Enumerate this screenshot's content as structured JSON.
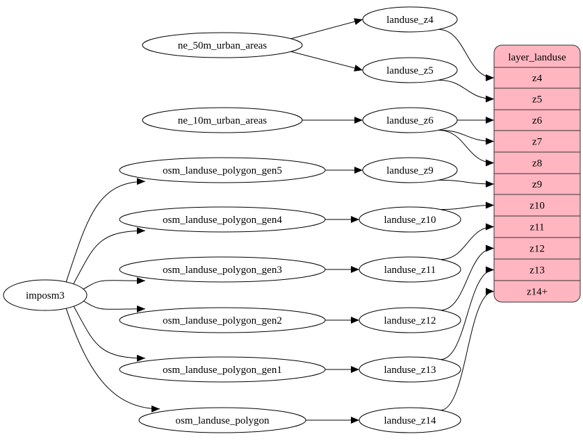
{
  "colors": {
    "record_fill": "#ffb6c1",
    "stroke": "#000000"
  },
  "nodes": [
    {
      "id": "landuse_z4",
      "label": "landuse_z4"
    },
    {
      "id": "ne_50m_urban_areas",
      "label": "ne_50m_urban_areas"
    },
    {
      "id": "landuse_z5",
      "label": "landuse_z5"
    },
    {
      "id": "ne_10m_urban_areas",
      "label": "ne_10m_urban_areas"
    },
    {
      "id": "landuse_z6",
      "label": "landuse_z6"
    },
    {
      "id": "osm_landuse_polygon_gen5",
      "label": "osm_landuse_polygon_gen5"
    },
    {
      "id": "landuse_z9",
      "label": "landuse_z9"
    },
    {
      "id": "osm_landuse_polygon_gen4",
      "label": "osm_landuse_polygon_gen4"
    },
    {
      "id": "landuse_z10",
      "label": "landuse_z10"
    },
    {
      "id": "osm_landuse_polygon_gen3",
      "label": "osm_landuse_polygon_gen3"
    },
    {
      "id": "landuse_z11",
      "label": "landuse_z11"
    },
    {
      "id": "imposm3",
      "label": "imposm3"
    },
    {
      "id": "osm_landuse_polygon_gen2",
      "label": "osm_landuse_polygon_gen2"
    },
    {
      "id": "landuse_z12",
      "label": "landuse_z12"
    },
    {
      "id": "osm_landuse_polygon_gen1",
      "label": "osm_landuse_polygon_gen1"
    },
    {
      "id": "landuse_z13",
      "label": "landuse_z13"
    },
    {
      "id": "osm_landuse_polygon",
      "label": "osm_landuse_polygon"
    },
    {
      "id": "landuse_z14",
      "label": "landuse_z14"
    }
  ],
  "record": {
    "id": "layer_landuse",
    "title": "layer_landuse",
    "ports": [
      "z4",
      "z5",
      "z6",
      "z7",
      "z8",
      "z9",
      "z10",
      "z11",
      "z12",
      "z13",
      "z14+"
    ]
  },
  "edges": [
    {
      "from": "ne_50m_urban_areas",
      "to": "landuse_z4"
    },
    {
      "from": "ne_50m_urban_areas",
      "to": "landuse_z5"
    },
    {
      "from": "ne_10m_urban_areas",
      "to": "landuse_z6"
    },
    {
      "from": "osm_landuse_polygon_gen5",
      "to": "landuse_z9"
    },
    {
      "from": "osm_landuse_polygon_gen4",
      "to": "landuse_z10"
    },
    {
      "from": "osm_landuse_polygon_gen3",
      "to": "landuse_z11"
    },
    {
      "from": "osm_landuse_polygon_gen2",
      "to": "landuse_z12"
    },
    {
      "from": "osm_landuse_polygon_gen1",
      "to": "landuse_z13"
    },
    {
      "from": "osm_landuse_polygon",
      "to": "landuse_z14"
    },
    {
      "from": "imposm3",
      "to": "osm_landuse_polygon_gen5"
    },
    {
      "from": "imposm3",
      "to": "osm_landuse_polygon_gen4"
    },
    {
      "from": "imposm3",
      "to": "osm_landuse_polygon_gen3"
    },
    {
      "from": "imposm3",
      "to": "osm_landuse_polygon_gen2"
    },
    {
      "from": "imposm3",
      "to": "osm_landuse_polygon_gen1"
    },
    {
      "from": "imposm3",
      "to": "osm_landuse_polygon"
    },
    {
      "from": "landuse_z4",
      "to": "layer_landuse:z4"
    },
    {
      "from": "landuse_z5",
      "to": "layer_landuse:z5"
    },
    {
      "from": "landuse_z6",
      "to": "layer_landuse:z6"
    },
    {
      "from": "landuse_z6",
      "to": "layer_landuse:z7"
    },
    {
      "from": "landuse_z6",
      "to": "layer_landuse:z8"
    },
    {
      "from": "landuse_z9",
      "to": "layer_landuse:z9"
    },
    {
      "from": "landuse_z10",
      "to": "layer_landuse:z10"
    },
    {
      "from": "landuse_z11",
      "to": "layer_landuse:z11"
    },
    {
      "from": "landuse_z12",
      "to": "layer_landuse:z12"
    },
    {
      "from": "landuse_z13",
      "to": "layer_landuse:z13"
    },
    {
      "from": "landuse_z14",
      "to": "layer_landuse:z14+"
    }
  ]
}
